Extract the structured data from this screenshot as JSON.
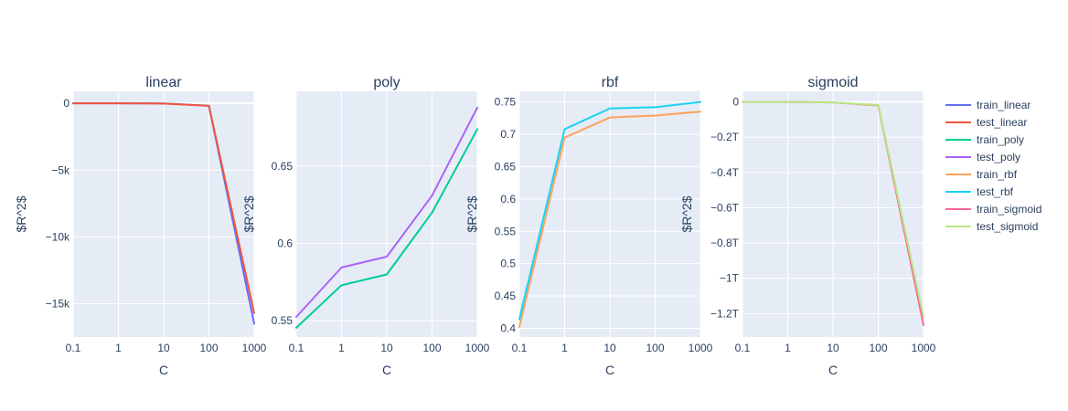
{
  "chart_data": [
    {
      "type": "line",
      "title": "linear",
      "xlabel": "C",
      "ylabel": "$R^2$",
      "x": [
        0.1,
        1,
        10,
        100,
        1000
      ],
      "xscale": "log",
      "xticks": [
        "0.1",
        "1",
        "10",
        "100",
        "1000"
      ],
      "ylim": [
        -17500,
        900
      ],
      "yticks": [
        {
          "v": 0,
          "label": "0"
        },
        {
          "v": -5000,
          "label": "−5k"
        },
        {
          "v": -10000,
          "label": "−10k"
        },
        {
          "v": -15000,
          "label": "−15k"
        }
      ],
      "series": [
        {
          "name": "train_linear",
          "color": "#636efa",
          "values": [
            0,
            0,
            -10,
            -180,
            -16500
          ]
        },
        {
          "name": "test_linear",
          "color": "#EF553B",
          "values": [
            0,
            0,
            -12,
            -185,
            -15700
          ]
        }
      ]
    },
    {
      "type": "line",
      "title": "poly",
      "xlabel": "C",
      "ylabel": "$R^2$",
      "x": [
        0.1,
        1,
        10,
        100,
        1000
      ],
      "xscale": "log",
      "xticks": [
        "0.1",
        "1",
        "10",
        "100",
        "1000"
      ],
      "ylim": [
        0.5395,
        0.6985
      ],
      "yticks": [
        {
          "v": 0.55,
          "label": "0.55"
        },
        {
          "v": 0.6,
          "label": "0.6"
        },
        {
          "v": 0.65,
          "label": "0.65"
        }
      ],
      "series": [
        {
          "name": "train_poly",
          "color": "#00cc96",
          "values": [
            0.5455,
            0.573,
            0.58,
            0.62,
            0.674
          ]
        },
        {
          "name": "test_poly",
          "color": "#ab63fa",
          "values": [
            0.5525,
            0.5845,
            0.5915,
            0.631,
            0.688
          ]
        }
      ]
    },
    {
      "type": "line",
      "title": "rbf",
      "xlabel": "C",
      "ylabel": "$R^2$",
      "x": [
        0.1,
        1,
        10,
        100,
        1000
      ],
      "xscale": "log",
      "xticks": [
        "0.1",
        "1",
        "10",
        "100",
        "1000"
      ],
      "ylim": [
        0.3865,
        0.7665
      ],
      "yticks": [
        {
          "v": 0.4,
          "label": "0.4"
        },
        {
          "v": 0.45,
          "label": "0.45"
        },
        {
          "v": 0.5,
          "label": "0.5"
        },
        {
          "v": 0.55,
          "label": "0.55"
        },
        {
          "v": 0.6,
          "label": "0.6"
        },
        {
          "v": 0.65,
          "label": "0.65"
        },
        {
          "v": 0.7,
          "label": "0.7"
        },
        {
          "v": 0.75,
          "label": "0.75"
        }
      ],
      "series": [
        {
          "name": "train_rbf",
          "color": "#FFA15A",
          "values": [
            0.402,
            0.695,
            0.726,
            0.729,
            0.735
          ]
        },
        {
          "name": "test_rbf",
          "color": "#19d3f3",
          "values": [
            0.414,
            0.708,
            0.74,
            0.742,
            0.75
          ]
        }
      ]
    },
    {
      "type": "line",
      "title": "sigmoid",
      "xlabel": "C",
      "ylabel": "$R^2$",
      "x": [
        0.1,
        1,
        10,
        100,
        1000
      ],
      "xscale": "log",
      "xticks": [
        "0.1",
        "1",
        "10",
        "100",
        "1000"
      ],
      "ylim": [
        -1.333,
        0.06
      ],
      "yticks": [
        {
          "v": 0,
          "label": "0"
        },
        {
          "v": -0.2,
          "label": "−0.2T"
        },
        {
          "v": -0.4,
          "label": "−0.4T"
        },
        {
          "v": -0.6,
          "label": "−0.6T"
        },
        {
          "v": -0.8,
          "label": "−0.8T"
        },
        {
          "v": -1.0,
          "label": "−1T"
        },
        {
          "v": -1.2,
          "label": "−1.2T"
        }
      ],
      "series": [
        {
          "name": "train_sigmoid",
          "color": "#FF6692",
          "values": [
            0,
            0,
            -0.003,
            -0.02,
            -1.265
          ]
        },
        {
          "name": "test_sigmoid",
          "color": "#B6E880",
          "values": [
            0,
            0,
            -0.003,
            -0.018,
            -1.22
          ]
        }
      ]
    }
  ],
  "legend": {
    "placement": "right",
    "items": [
      {
        "name": "train_linear",
        "color": "#636efa"
      },
      {
        "name": "test_linear",
        "color": "#EF553B"
      },
      {
        "name": "train_poly",
        "color": "#00cc96"
      },
      {
        "name": "test_poly",
        "color": "#ab63fa"
      },
      {
        "name": "train_rbf",
        "color": "#FFA15A"
      },
      {
        "name": "test_rbf",
        "color": "#19d3f3"
      },
      {
        "name": "train_sigmoid",
        "color": "#FF6692"
      },
      {
        "name": "test_sigmoid",
        "color": "#B6E880"
      }
    ]
  }
}
